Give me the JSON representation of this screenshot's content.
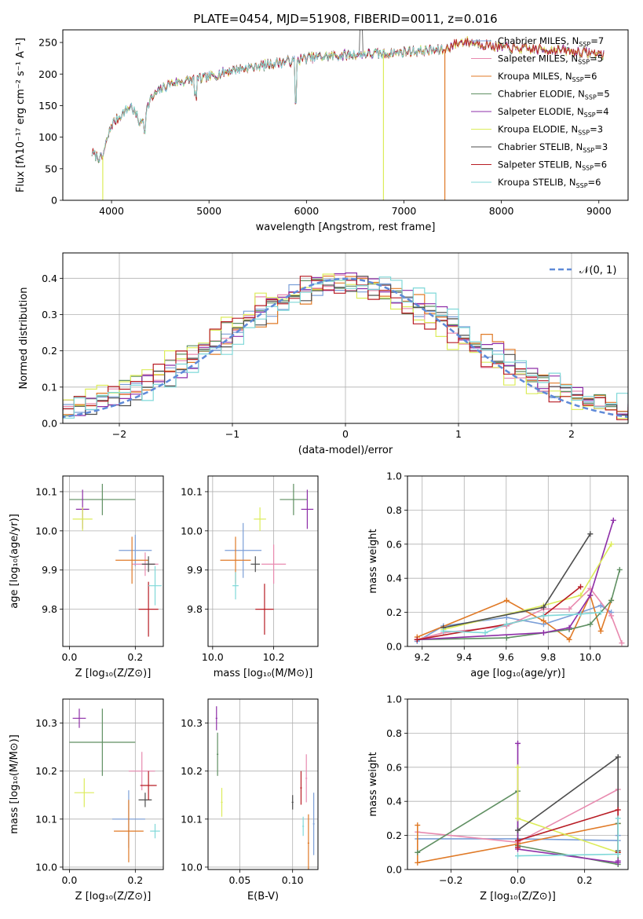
{
  "chart_data": [
    {
      "id": "spectrum",
      "type": "line",
      "title": "PLATE=0454, MJD=51908, FIBERID=0011, z=0.016",
      "xlabel": "wavelength [Angstrom, rest frame]",
      "ylabel": "Flux [fλ10⁻¹⁷ erg cm⁻² s⁻¹ A⁻¹]",
      "xlim": [
        3500,
        9300
      ],
      "ylim": [
        0,
        270
      ],
      "xticks": [
        "4000",
        "5000",
        "6000",
        "7000",
        "8000",
        "9000"
      ],
      "yticks": [
        "0",
        "50",
        "100",
        "150",
        "200",
        "250"
      ],
      "grid": false,
      "legend_position": "right",
      "legend": [
        {
          "text": "Chabrier MILES, N",
          "sub": "SSP",
          "tail": "=7",
          "color": "#7b9fd8"
        },
        {
          "text": "Salpeter MILES, N",
          "sub": "SSP",
          "tail": "=5",
          "color": "#e88aaf"
        },
        {
          "text": "Kroupa MILES, N",
          "sub": "SSP",
          "tail": "=6",
          "color": "#e07a27"
        },
        {
          "text": "Chabrier ELODIE, N",
          "sub": "SSP",
          "tail": "=5",
          "color": "#5f8f62"
        },
        {
          "text": "Salpeter ELODIE, N",
          "sub": "SSP",
          "tail": "=4",
          "color": "#8e2fa8"
        },
        {
          "text": "Kroupa ELODIE, N",
          "sub": "SSP",
          "tail": "=3",
          "color": "#dcec5a"
        },
        {
          "text": "Chabrier STELIB, N",
          "sub": "SSP",
          "tail": "=3",
          "color": "#4d4d4d"
        },
        {
          "text": "Salpeter STELIB, N",
          "sub": "SSP",
          "tail": "=6",
          "color": "#b81c24"
        },
        {
          "text": "Kroupa STELIB, N",
          "sub": "SSP",
          "tail": "=6",
          "color": "#7fd8d8"
        }
      ],
      "continuum": {
        "x": [
          3800,
          3900,
          4000,
          4100,
          4200,
          4300,
          4400,
          4500,
          4600,
          4800,
          5000,
          5200,
          5400,
          5600,
          5800,
          6000,
          6200,
          6400,
          6600,
          6800,
          7000,
          7200,
          7400,
          7600,
          7800,
          8000,
          8200,
          8400,
          8600,
          8800,
          9000,
          9050
        ],
        "y": [
          75,
          65,
          120,
          135,
          150,
          120,
          160,
          175,
          185,
          190,
          195,
          205,
          210,
          215,
          220,
          225,
          228,
          230,
          232,
          232,
          235,
          237,
          238,
          252,
          248,
          242,
          240,
          239,
          238,
          235,
          232,
          230
        ]
      },
      "dropouts": [
        {
          "x": 3910,
          "color": "#dcec5a"
        },
        {
          "x": 6790,
          "color": "#dcec5a"
        },
        {
          "x": 7420,
          "color": "#e07a27"
        }
      ]
    },
    {
      "id": "residuals",
      "type": "line",
      "xlabel": "(data-model)/error",
      "ylabel": "Normed distribution",
      "xlim": [
        -2.5,
        2.5
      ],
      "ylim": [
        0,
        0.47
      ],
      "xticks": [
        {
          "v": -2,
          "t": "−2"
        },
        {
          "v": -1,
          "t": "−1"
        },
        {
          "v": 0,
          "t": "0"
        },
        {
          "v": 1,
          "t": "1"
        },
        {
          "v": 2,
          "t": "2"
        }
      ],
      "yticks": [
        "0.0",
        "0.1",
        "0.2",
        "0.3",
        "0.4"
      ],
      "grid": true,
      "legend": "𝒩(0, 1)",
      "legend_color": "#5f8ad8",
      "legend_position": "top-right",
      "bin_width": 0.1,
      "series": [
        {
          "color": "#7b9fd8",
          "shift": 0.0
        },
        {
          "color": "#e88aaf",
          "shift": -0.1
        },
        {
          "color": "#e07a27",
          "shift": 0.1
        },
        {
          "color": "#5f8f62",
          "shift": -0.05
        },
        {
          "color": "#8e2fa8",
          "shift": 0.05
        },
        {
          "color": "#dcec5a",
          "shift": -0.15
        },
        {
          "color": "#4d4d4d",
          "shift": 0.08
        },
        {
          "color": "#b81c24",
          "shift": -0.12
        },
        {
          "color": "#7fd8d8",
          "shift": 0.15
        }
      ]
    },
    {
      "id": "z_age",
      "type": "scatter",
      "xlabel": "Z [log₁₀(Z/Z⊙)]",
      "ylabel": "age  [log₁₀(age/yr)]",
      "xlim": [
        -0.02,
        0.285
      ],
      "ylim": [
        9.705,
        10.14
      ],
      "xticks": [
        "0.0",
        "0.2"
      ],
      "yticks": [
        "9.8",
        "9.9",
        "10.0",
        "10.1"
      ],
      "grid": true,
      "points": [
        {
          "x": 0.2,
          "y": 9.95,
          "xerr": 0.05,
          "yerr": 0.04,
          "color": "#7b9fd8"
        },
        {
          "x": 0.23,
          "y": 9.915,
          "xerr": 0.04,
          "yerr": 0.03,
          "color": "#e88aaf"
        },
        {
          "x": 0.19,
          "y": 9.925,
          "xerr": 0.05,
          "yerr": 0.06,
          "color": "#e07a27"
        },
        {
          "x": 0.1,
          "y": 10.08,
          "xerr": 0.1,
          "yerr": 0.04,
          "color": "#5f8f62"
        },
        {
          "x": 0.04,
          "y": 10.055,
          "xerr": 0.02,
          "yerr": 0.05,
          "color": "#8e2fa8"
        },
        {
          "x": 0.04,
          "y": 10.03,
          "xerr": 0.03,
          "yerr": 0.03,
          "color": "#dcec5a"
        },
        {
          "x": 0.24,
          "y": 9.915,
          "xerr": 0.02,
          "yerr": 0.02,
          "color": "#4d4d4d"
        },
        {
          "x": 0.24,
          "y": 9.8,
          "xerr": 0.03,
          "yerr": 0.07,
          "color": "#b81c24"
        },
        {
          "x": 0.26,
          "y": 9.86,
          "xerr": 0.02,
          "yerr": 0.05,
          "color": "#7fd8d8"
        }
      ]
    },
    {
      "id": "mass_age",
      "type": "scatter",
      "xlabel": "mass [log₁₀(M/M⊙)]",
      "ylabel": "",
      "xlim": [
        9.985,
        10.345
      ],
      "ylim": [
        9.705,
        10.14
      ],
      "xticks": [
        "10.0",
        "10.2"
      ],
      "yticks": [
        "9.8",
        "9.9",
        "10.0",
        "10.1"
      ],
      "grid": true,
      "points": [
        {
          "x": 10.1,
          "y": 9.95,
          "xerr": 0.06,
          "yerr": 0.07,
          "color": "#7b9fd8"
        },
        {
          "x": 10.2,
          "y": 9.915,
          "xerr": 0.04,
          "yerr": 0.05,
          "color": "#e88aaf"
        },
        {
          "x": 10.075,
          "y": 9.925,
          "xerr": 0.05,
          "yerr": 0.06,
          "color": "#e07a27"
        },
        {
          "x": 10.265,
          "y": 10.08,
          "xerr": 0.045,
          "yerr": 0.04,
          "color": "#5f8f62"
        },
        {
          "x": 10.31,
          "y": 10.055,
          "xerr": 0.02,
          "yerr": 0.05,
          "color": "#8e2fa8"
        },
        {
          "x": 10.155,
          "y": 10.03,
          "xerr": 0.02,
          "yerr": 0.03,
          "color": "#dcec5a"
        },
        {
          "x": 10.14,
          "y": 9.915,
          "xerr": 0.015,
          "yerr": 0.02,
          "color": "#4d4d4d"
        },
        {
          "x": 10.17,
          "y": 9.8,
          "xerr": 0.03,
          "yerr": 0.065,
          "color": "#b81c24"
        },
        {
          "x": 10.075,
          "y": 9.86,
          "xerr": 0.01,
          "yerr": 0.035,
          "color": "#7fd8d8"
        }
      ]
    },
    {
      "id": "age_weights",
      "type": "line",
      "xlabel": "age  [log₁₀(age/yr)]",
      "ylabel": "mass weight",
      "xlim": [
        9.13,
        10.18
      ],
      "ylim": [
        0,
        1.0
      ],
      "xticks": [
        "9.2",
        "9.4",
        "9.6",
        "9.8",
        "10.0"
      ],
      "yticks": [
        "0.0",
        "0.2",
        "0.4",
        "0.6",
        "0.8",
        "1.0"
      ],
      "grid": true,
      "series": [
        {
          "color": "#7b9fd8",
          "x": [
            9.176,
            9.301,
            9.602,
            9.778,
            9.954,
            10.05,
            10.1
          ],
          "y": [
            0.03,
            0.12,
            0.17,
            0.13,
            0.2,
            0.24,
            0.2
          ]
        },
        {
          "color": "#e88aaf",
          "x": [
            9.176,
            9.301,
            9.602,
            9.778,
            9.9,
            10.0,
            10.1,
            10.15
          ],
          "y": [
            0.04,
            0.08,
            0.12,
            0.22,
            0.22,
            0.34,
            0.18,
            0.02
          ]
        },
        {
          "color": "#e07a27",
          "x": [
            9.176,
            9.602,
            9.778,
            9.9,
            10.0,
            10.05,
            10.1
          ],
          "y": [
            0.055,
            0.27,
            0.15,
            0.04,
            0.3,
            0.09,
            0.27
          ]
        },
        {
          "color": "#5f8f62",
          "x": [
            9.176,
            9.602,
            9.9,
            10.0,
            10.1,
            10.14
          ],
          "y": [
            0.04,
            0.05,
            0.1,
            0.13,
            0.27,
            0.45
          ]
        },
        {
          "color": "#8e2fa8",
          "x": [
            9.176,
            9.778,
            9.9,
            10.0,
            10.11
          ],
          "y": [
            0.04,
            0.08,
            0.11,
            0.3,
            0.74
          ]
        },
        {
          "color": "#dcec5a",
          "x": [
            9.301,
            9.778,
            9.954,
            10.1
          ],
          "y": [
            0.1,
            0.24,
            0.3,
            0.6
          ]
        },
        {
          "color": "#4d4d4d",
          "x": [
            9.301,
            9.778,
            10.0
          ],
          "y": [
            0.11,
            0.23,
            0.66
          ]
        },
        {
          "color": "#b81c24",
          "x": [
            9.176,
            9.602,
            9.778,
            9.954
          ],
          "y": [
            0.04,
            0.13,
            0.18,
            0.35
          ]
        },
        {
          "color": "#7fd8d8",
          "x": [
            9.301,
            9.5,
            9.602,
            9.778,
            9.954,
            10.05
          ],
          "y": [
            0.09,
            0.08,
            0.13,
            0.18,
            0.19,
            0.2
          ]
        }
      ]
    },
    {
      "id": "z_mass",
      "type": "scatter",
      "xlabel": "Z [log₁₀(Z/Z⊙)]",
      "ylabel": "mass [log₁₀(M/M⊙)]",
      "xlim": [
        -0.02,
        0.285
      ],
      "ylim": [
        9.995,
        10.35
      ],
      "xticks": [
        "0.0",
        "0.2"
      ],
      "yticks": [
        "10.0",
        "10.1",
        "10.2",
        "10.3"
      ],
      "grid": true,
      "points": [
        {
          "x": 0.18,
          "y": 10.1,
          "xerr": 0.05,
          "yerr": 0.06,
          "color": "#7b9fd8"
        },
        {
          "x": 0.22,
          "y": 10.2,
          "xerr": 0.04,
          "yerr": 0.04,
          "color": "#e88aaf"
        },
        {
          "x": 0.18,
          "y": 10.075,
          "xerr": 0.045,
          "yerr": 0.065,
          "color": "#e07a27"
        },
        {
          "x": 0.1,
          "y": 10.26,
          "xerr": 0.1,
          "yerr": 0.07,
          "color": "#5f8f62"
        },
        {
          "x": 0.03,
          "y": 10.31,
          "xerr": 0.02,
          "yerr": 0.02,
          "color": "#8e2fa8"
        },
        {
          "x": 0.045,
          "y": 10.155,
          "xerr": 0.03,
          "yerr": 0.03,
          "color": "#dcec5a"
        },
        {
          "x": 0.23,
          "y": 10.14,
          "xerr": 0.02,
          "yerr": 0.015,
          "color": "#4d4d4d"
        },
        {
          "x": 0.24,
          "y": 10.17,
          "xerr": 0.025,
          "yerr": 0.03,
          "color": "#b81c24"
        },
        {
          "x": 0.26,
          "y": 10.075,
          "xerr": 0.015,
          "yerr": 0.015,
          "color": "#7fd8d8"
        }
      ]
    },
    {
      "id": "ebv_mass",
      "type": "scatter",
      "xlabel": "E(B-V)",
      "ylabel": "",
      "xlim": [
        0.02,
        0.124
      ],
      "ylim": [
        9.995,
        10.35
      ],
      "xticks": [
        {
          "v": 0.05,
          "t": "0.05"
        },
        {
          "v": 0.1,
          "t": "0.10"
        }
      ],
      "yticks": [
        "10.0",
        "10.1",
        "10.2",
        "10.3"
      ],
      "grid": true,
      "points": [
        {
          "x": 0.12,
          "y": 10.09,
          "yerr": 0.065,
          "color": "#7b9fd8"
        },
        {
          "x": 0.113,
          "y": 10.185,
          "yerr": 0.05,
          "color": "#e88aaf"
        },
        {
          "x": 0.115,
          "y": 10.05,
          "yerr": 0.06,
          "color": "#e07a27"
        },
        {
          "x": 0.029,
          "y": 10.235,
          "yerr": 0.045,
          "color": "#5f8f62"
        },
        {
          "x": 0.028,
          "y": 10.31,
          "yerr": 0.025,
          "color": "#8e2fa8"
        },
        {
          "x": 0.033,
          "y": 10.135,
          "yerr": 0.03,
          "color": "#dcec5a"
        },
        {
          "x": 0.1,
          "y": 10.135,
          "yerr": 0.015,
          "color": "#4d4d4d"
        },
        {
          "x": 0.108,
          "y": 10.165,
          "yerr": 0.035,
          "color": "#b81c24"
        },
        {
          "x": 0.11,
          "y": 10.085,
          "yerr": 0.02,
          "color": "#7fd8d8"
        }
      ]
    },
    {
      "id": "z_weights",
      "type": "line",
      "xlabel": "Z [log₁₀(Z/Z⊙)]",
      "ylabel": "mass weight",
      "xlim": [
        -0.33,
        0.33
      ],
      "ylim": [
        0,
        1.0
      ],
      "xticks": [
        {
          "v": -0.2,
          "t": "−0.2"
        },
        {
          "v": 0.0,
          "t": "0.0"
        },
        {
          "v": 0.2,
          "t": "0.2"
        }
      ],
      "yticks": [
        "0.0",
        "0.2",
        "0.4",
        "0.6",
        "0.8",
        "1.0"
      ],
      "grid": true,
      "series": [
        {
          "color": "#7b9fd8",
          "x": [
            -0.3,
            0.0,
            0.3,
            0.3
          ],
          "y": [
            0.18,
            0.18,
            0.17,
            0.2
          ]
        },
        {
          "color": "#e88aaf",
          "x": [
            -0.3,
            0.0,
            0.3,
            0.3
          ],
          "y": [
            0.22,
            0.16,
            0.47,
            0.1
          ]
        },
        {
          "color": "#e07a27",
          "x": [
            -0.3,
            -0.3,
            0.0,
            0.3
          ],
          "y": [
            0.26,
            0.04,
            0.15,
            0.27
          ]
        },
        {
          "color": "#5f8f62",
          "x": [
            -0.3,
            0.0,
            0.0,
            0.3,
            0.3
          ],
          "y": [
            0.1,
            0.46,
            0.14,
            0.03,
            0.27
          ]
        },
        {
          "color": "#8e2fa8",
          "x": [
            0.0,
            0.0,
            0.3,
            0.3
          ],
          "y": [
            0.74,
            0.12,
            0.04,
            0.05
          ]
        },
        {
          "color": "#dcec5a",
          "x": [
            0.0,
            0.0,
            0.3
          ],
          "y": [
            0.6,
            0.3,
            0.1
          ]
        },
        {
          "color": "#4d4d4d",
          "x": [
            0.0,
            0.3,
            0.3
          ],
          "y": [
            0.23,
            0.66,
            0.11
          ]
        },
        {
          "color": "#b81c24",
          "x": [
            0.0,
            0.0,
            0.3,
            0.3
          ],
          "y": [
            0.13,
            0.17,
            0.35,
            0.1
          ]
        },
        {
          "color": "#7fd8d8",
          "x": [
            0.0,
            0.3,
            0.3
          ],
          "y": [
            0.08,
            0.09,
            0.3
          ]
        }
      ]
    }
  ]
}
